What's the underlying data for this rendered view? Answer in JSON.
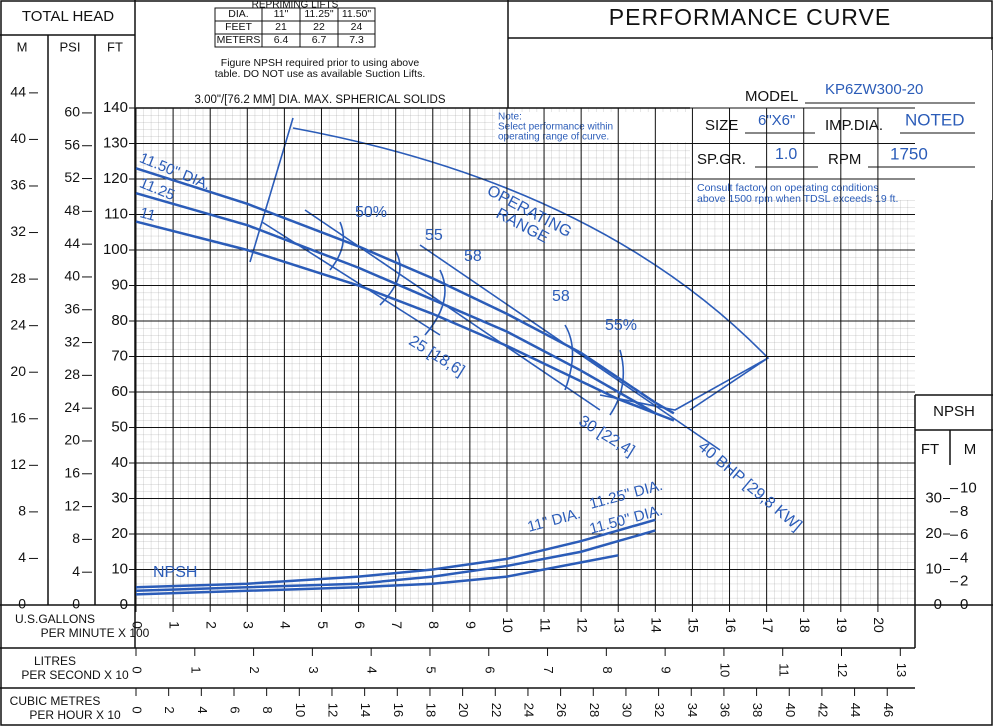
{
  "chart_data": {
    "type": "line",
    "title": "PERFORMANCE CURVE",
    "y_title": "TOTAL HEAD",
    "y_name": "FT",
    "x_label": [
      "U.S.GALLONS",
      "PER MINUTE X 100"
    ],
    "xlim": [
      0,
      21
    ],
    "xticks": [
      0,
      1,
      2,
      3,
      4,
      5,
      6,
      7,
      8,
      9,
      10,
      11,
      12,
      13,
      14,
      15,
      16,
      17,
      18,
      19,
      20
    ],
    "ylim": [
      0,
      140
    ],
    "yticks": [
      0,
      10,
      20,
      30,
      40,
      50,
      60,
      70,
      80,
      90,
      100,
      110,
      120,
      130,
      140
    ],
    "grid": true,
    "y_alt_axes": [
      {
        "name": "M",
        "ylim": [
          0,
          42.7
        ],
        "yticks": [
          0,
          4,
          8,
          12,
          16,
          20,
          24,
          28,
          32,
          36,
          40,
          44
        ]
      },
      {
        "name": "PSI",
        "ylim": [
          0,
          60.6
        ],
        "yticks": [
          0,
          4,
          8,
          12,
          16,
          20,
          24,
          28,
          32,
          36,
          40,
          44,
          48,
          52,
          56,
          60
        ]
      }
    ],
    "x_alt_axes": [
      {
        "label": [
          "LITRES",
          "PER SECOND X 10"
        ],
        "xlim": [
          0,
          13.25
        ],
        "xticks": [
          0,
          1,
          2,
          3,
          4,
          5,
          6,
          7,
          8,
          9,
          10,
          11,
          12,
          13
        ]
      },
      {
        "label": [
          "CUBIC METRES",
          "PER HOUR X 10"
        ],
        "xlim": [
          0,
          47.7
        ],
        "xticks": [
          0,
          2,
          4,
          6,
          8,
          10,
          12,
          14,
          16,
          18,
          20,
          22,
          24,
          26,
          28,
          30,
          32,
          34,
          36,
          38,
          40,
          42,
          44,
          46
        ]
      }
    ],
    "x": [
      0,
      3,
      6,
      8,
      10,
      12,
      13,
      14,
      14.5
    ],
    "series": [
      {
        "name": "11.50\" DIA.",
        "color": "#2b5cb8",
        "values": [
          123,
          113,
          101,
          92,
          82,
          71,
          64,
          57,
          54
        ]
      },
      {
        "name": "11.25",
        "color": "#2b5cb8",
        "values": [
          116,
          107,
          95,
          86,
          77,
          66,
          60,
          54,
          52
        ]
      },
      {
        "name": "11",
        "color": "#2b5cb8",
        "values": [
          108,
          100,
          90,
          82,
          73,
          63,
          58,
          54,
          null
        ]
      },
      {
        "name": "11\" DIA.",
        "color": "#2b5cb8",
        "values": [
          3,
          4,
          5,
          6,
          8,
          12,
          14,
          null,
          null
        ]
      },
      {
        "name": "11.25\" DIA.",
        "color": "#2b5cb8",
        "values": [
          5,
          6,
          8,
          10,
          13,
          18,
          21,
          24,
          null
        ]
      },
      {
        "name": "11.50\" DIA.",
        "color": "#2b5cb8",
        "values": [
          4,
          5,
          6,
          8,
          11,
          15,
          18,
          21,
          null
        ]
      }
    ],
    "npsh_axes": {
      "title": "NPSH",
      "ft": {
        "name": "FT",
        "ylim": [
          0,
          140
        ],
        "yticks": [
          0,
          10,
          20,
          30
        ]
      },
      "m": {
        "name": "M",
        "ylim": [
          0,
          42.7
        ],
        "yticks": [
          0,
          2,
          4,
          6,
          8,
          10
        ]
      }
    },
    "annotations": [
      "50%",
      "55",
      "58",
      "58",
      "55%",
      "25 [18,6]",
      "30 [22,4]",
      "40 BHP [29,8 KW]",
      "OPERATING",
      "RANGE",
      "NPSH"
    ],
    "table": {
      "title": "REPRIMING LIFTS",
      "rows": [
        [
          "DIA.",
          "11\"",
          "11.25\"",
          "11.50\""
        ],
        [
          "FEET",
          "21",
          "22",
          "24"
        ],
        [
          "METERS",
          "6.4",
          "6.7",
          "7.3"
        ]
      ]
    },
    "table_note": [
      "Figure NPSH required prior to using above",
      "table. DO NOT use as available Suction Lifts."
    ],
    "solids": "3.00\"/[76.2 MM] DIA. MAX. SPHERICAL SOLIDS",
    "model": {
      "model_label": "MODEL",
      "model": "KP6ZW300-20",
      "size_label": "SIZE",
      "size": "6\"X6\"",
      "imp_label": "IMP.DIA.",
      "imp": "NOTED",
      "spgr_label": "SP.GR.",
      "spgr": "1.0",
      "rpm_label": "RPM",
      "rpm": "1750"
    },
    "note": [
      "Note:",
      "Select performance within",
      "operating range of curve."
    ],
    "consult": [
      "Consult factory on operating conditions",
      "above 1500 rpm when TDSL exceeds 19 ft."
    ]
  }
}
